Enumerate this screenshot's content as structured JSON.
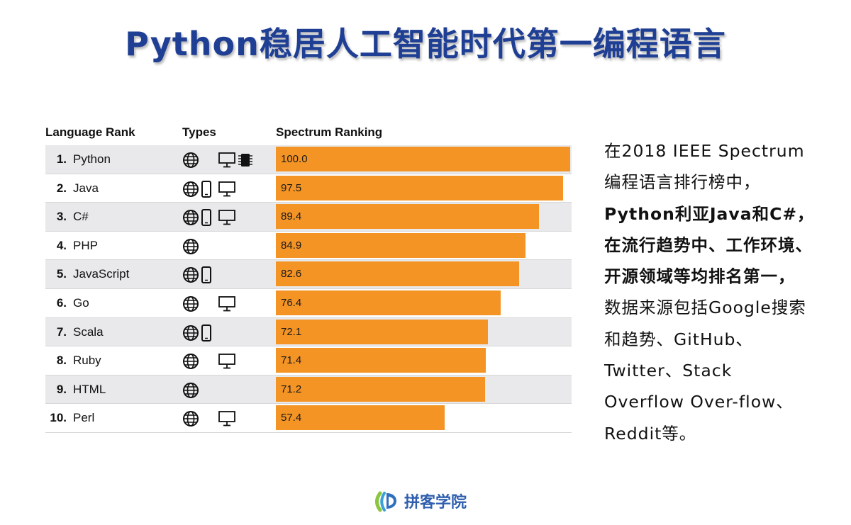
{
  "title": "Python稳居人工智能时代第一编程语言",
  "table": {
    "headers": {
      "rank": "Language Rank",
      "types": "Types",
      "spectrum": "Spectrum Ranking"
    }
  },
  "chart_data": {
    "type": "bar",
    "orientation": "horizontal",
    "max_value": 100,
    "xlabel": "Spectrum Ranking",
    "bar_color": "#f39425",
    "rows": [
      {
        "rank": "1.",
        "language": "Python",
        "value": 100.0,
        "value_label": "100.0",
        "types": [
          "web",
          "desktop",
          "embedded"
        ]
      },
      {
        "rank": "2.",
        "language": "Java",
        "value": 97.5,
        "value_label": "97.5",
        "types": [
          "web",
          "mobile",
          "desktop"
        ]
      },
      {
        "rank": "3.",
        "language": "C#",
        "value": 89.4,
        "value_label": "89.4",
        "types": [
          "web",
          "mobile",
          "desktop"
        ]
      },
      {
        "rank": "4.",
        "language": "PHP",
        "value": 84.9,
        "value_label": "84.9",
        "types": [
          "web"
        ]
      },
      {
        "rank": "5.",
        "language": "JavaScript",
        "value": 82.6,
        "value_label": "82.6",
        "types": [
          "web",
          "mobile"
        ]
      },
      {
        "rank": "6.",
        "language": "Go",
        "value": 76.4,
        "value_label": "76.4",
        "types": [
          "web",
          "desktop"
        ]
      },
      {
        "rank": "7.",
        "language": "Scala",
        "value": 72.1,
        "value_label": "72.1",
        "types": [
          "web",
          "mobile"
        ]
      },
      {
        "rank": "8.",
        "language": "Ruby",
        "value": 71.4,
        "value_label": "71.4",
        "types": [
          "web",
          "desktop"
        ]
      },
      {
        "rank": "9.",
        "language": "HTML",
        "value": 71.2,
        "value_label": "71.2",
        "types": [
          "web"
        ]
      },
      {
        "rank": "10.",
        "language": "Perl",
        "value": 57.4,
        "value_label": "57.4",
        "types": [
          "web",
          "desktop"
        ]
      }
    ]
  },
  "side_text": {
    "line1": "在2018 IEEE Spectrum",
    "line2": "编程语言排行榜中，",
    "line3": "Python利亚Java和C#，",
    "line4": "在流行趋势中、工作环境、",
    "line5": "开源领域等均排名第一，",
    "line6": "数据来源包括Google搜索",
    "line7": "和趋势、GitHub、",
    "line8": "Twitter、Stack",
    "line9": "Overflow  Over-flow、",
    "line10": "Reddit等。"
  },
  "footer": {
    "brand": "拼客学院",
    "logo_icon": "pinke-logo-icon"
  }
}
